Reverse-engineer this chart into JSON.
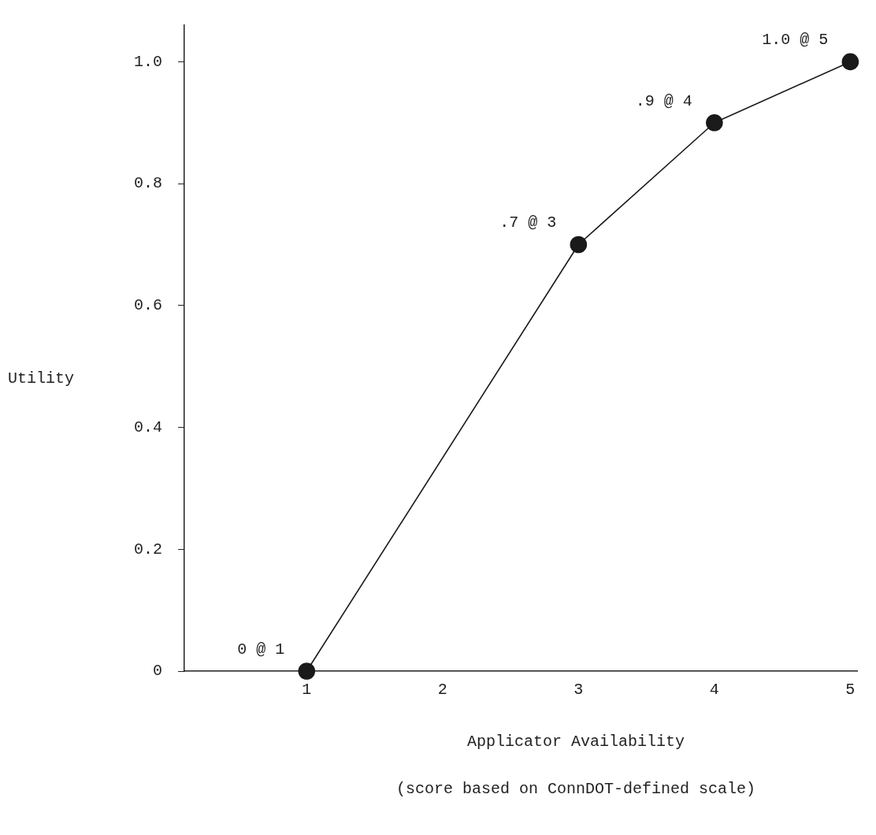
{
  "chart_data": {
    "type": "line",
    "xlabel": "Applicator Availability",
    "ylabel": "Utility",
    "x": [
      1,
      3,
      4,
      5
    ],
    "series": [
      {
        "color": "#1a1a1a",
        "values": [
          0,
          0.7,
          0.9,
          1.0
        ]
      }
    ],
    "xlim": [
      0.1,
      5.05
    ],
    "xticks": [
      1,
      2,
      3,
      4,
      5
    ],
    "ylim": [
      0,
      1.06
    ],
    "yticks": [
      {
        "value": 0,
        "label": "0"
      },
      {
        "value": 0.2,
        "label": "0.2"
      },
      {
        "value": 0.4,
        "label": "0.4"
      },
      {
        "value": 0.6,
        "label": "0.6"
      },
      {
        "value": 0.8,
        "label": "0.8"
      },
      {
        "value": 1,
        "label": "1.0"
      }
    ],
    "marker": "circle",
    "line_style": "solid",
    "grid": false,
    "legend": false,
    "annotations": [
      {
        "text": "0 @ 1",
        "x": 1,
        "y": 0
      },
      {
        "text": ".7 @ 3",
        "x": 3,
        "y": 0.7
      },
      {
        "text": ".9 @ 4",
        "x": 4,
        "y": 0.9
      },
      {
        "text": "1.0 @ 5",
        "x": 5,
        "y": 1.0
      },
      "(score based on ConnDOT-defined scale)"
    ]
  }
}
